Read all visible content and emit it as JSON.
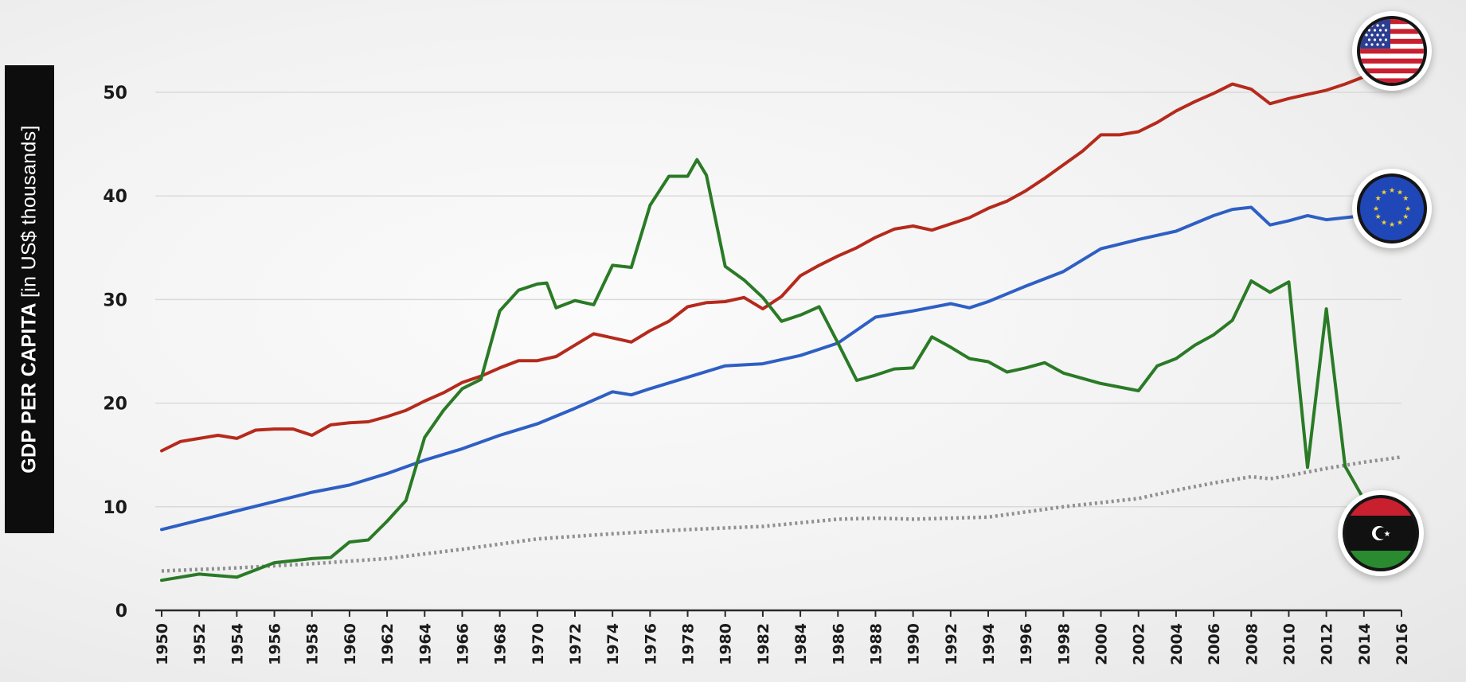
{
  "chart_data": {
    "type": "line",
    "ylabel_bold": "GDP PER CAPITA",
    "ylabel_unit": "[in US$ thousands]",
    "ylim": [
      0,
      50
    ],
    "xlim": [
      1950,
      2016
    ],
    "yticks": [
      0,
      10,
      20,
      30,
      40,
      50
    ],
    "xticks": [
      1950,
      1952,
      1954,
      1956,
      1958,
      1960,
      1962,
      1964,
      1966,
      1968,
      1970,
      1972,
      1974,
      1976,
      1978,
      1980,
      1982,
      1984,
      1986,
      1988,
      1990,
      1992,
      1994,
      1996,
      1998,
      2000,
      2002,
      2004,
      2006,
      2008,
      2010,
      2012,
      2014,
      2016
    ],
    "grid": true,
    "legend": "flag icons at line ends (right)",
    "series": [
      {
        "key": "usa",
        "flag": "usa-flag-icon",
        "color": "#b52a1c",
        "style": "solid",
        "x": [
          1950,
          1951,
          1952,
          1953,
          1954,
          1955,
          1956,
          1957,
          1958,
          1959,
          1960,
          1961,
          1962,
          1963,
          1964,
          1965,
          1966,
          1967,
          1968,
          1969,
          1970,
          1971,
          1972,
          1973,
          1974,
          1975,
          1976,
          1977,
          1978,
          1979,
          1980,
          1981,
          1982,
          1983,
          1984,
          1985,
          1986,
          1987,
          1988,
          1989,
          1990,
          1991,
          1992,
          1993,
          1994,
          1995,
          1996,
          1997,
          1998,
          1999,
          2000,
          2001,
          2002,
          2003,
          2004,
          2005,
          2006,
          2007,
          2008,
          2009,
          2010,
          2011,
          2012,
          2013,
          2014
        ],
        "y": [
          15.4,
          16.3,
          16.6,
          16.9,
          16.6,
          17.4,
          17.5,
          17.5,
          16.9,
          17.9,
          18.1,
          18.2,
          18.7,
          19.3,
          20.2,
          21.0,
          22.0,
          22.6,
          23.4,
          24.1,
          24.1,
          24.5,
          25.6,
          26.7,
          26.3,
          25.9,
          27.0,
          27.9,
          29.3,
          29.7,
          29.8,
          30.2,
          29.1,
          30.3,
          32.3,
          33.3,
          34.2,
          35.0,
          36.0,
          36.8,
          37.1,
          36.7,
          37.3,
          37.9,
          38.8,
          39.5,
          40.5,
          41.7,
          43.0,
          44.3,
          45.9,
          45.9,
          46.2,
          47.1,
          48.2,
          49.1,
          49.9,
          50.8,
          50.3,
          48.9,
          49.4,
          49.8,
          50.2,
          50.8,
          51.5
        ]
      },
      {
        "key": "eu",
        "flag": "eu-flag-icon",
        "color": "#2e5fc4",
        "style": "solid",
        "x": [
          1950,
          1952,
          1954,
          1956,
          1958,
          1960,
          1962,
          1964,
          1966,
          1968,
          1970,
          1972,
          1974,
          1975,
          1976,
          1978,
          1980,
          1982,
          1984,
          1986,
          1988,
          1990,
          1992,
          1993,
          1994,
          1996,
          1998,
          2000,
          2002,
          2004,
          2006,
          2007,
          2008,
          2009,
          2010,
          2011,
          2012,
          2013,
          2014,
          2015
        ],
        "y": [
          7.8,
          8.7,
          9.6,
          10.5,
          11.4,
          12.1,
          13.2,
          14.5,
          15.6,
          16.9,
          18.0,
          19.5,
          21.1,
          20.8,
          21.4,
          22.5,
          23.6,
          23.8,
          24.6,
          25.8,
          28.3,
          28.9,
          29.6,
          29.2,
          29.8,
          31.3,
          32.7,
          34.9,
          35.8,
          36.6,
          38.1,
          38.7,
          38.9,
          37.2,
          37.6,
          38.1,
          37.7,
          37.9,
          38.1,
          38.1
        ]
      },
      {
        "key": "libya",
        "flag": "libya-flag-icon",
        "color": "#2a7a26",
        "style": "solid",
        "x": [
          1950,
          1952,
          1954,
          1956,
          1958,
          1959,
          1960,
          1961,
          1962,
          1963,
          1964,
          1965,
          1966,
          1967,
          1968,
          1969,
          1970,
          1970.5,
          1971,
          1972,
          1973,
          1974,
          1975,
          1976,
          1977,
          1978,
          1978.5,
          1979,
          1980,
          1981,
          1982,
          1983,
          1984,
          1985,
          1986,
          1987,
          1988,
          1989,
          1990,
          1991,
          1992,
          1993,
          1994,
          1995,
          1996,
          1997,
          1998,
          2000,
          2002,
          2003,
          2004,
          2005,
          2006,
          2007,
          2008,
          2009,
          2010,
          2011,
          2012,
          2013,
          2014
        ],
        "y": [
          2.9,
          3.5,
          3.2,
          4.6,
          5.0,
          5.1,
          6.6,
          6.8,
          8.6,
          10.6,
          16.7,
          19.3,
          21.4,
          22.3,
          28.9,
          30.9,
          31.5,
          31.6,
          29.2,
          29.9,
          29.5,
          33.3,
          33.1,
          39.1,
          41.9,
          41.9,
          43.5,
          42.0,
          33.2,
          31.9,
          30.2,
          27.9,
          28.5,
          29.3,
          25.8,
          22.2,
          22.7,
          23.3,
          23.4,
          26.4,
          25.4,
          24.3,
          24.0,
          23.0,
          23.4,
          23.9,
          22.9,
          21.9,
          21.2,
          23.6,
          24.3,
          25.6,
          26.6,
          28.0,
          31.8,
          30.7,
          31.7,
          13.8,
          29.1,
          13.9,
          10.7
        ]
      },
      {
        "key": "world",
        "color": "#909090",
        "style": "dotted",
        "x": [
          1950,
          1954,
          1958,
          1962,
          1966,
          1970,
          1974,
          1978,
          1982,
          1986,
          1988,
          1990,
          1992,
          1994,
          1996,
          1998,
          2000,
          2002,
          2004,
          2006,
          2008,
          2009,
          2010,
          2012,
          2014,
          2016
        ],
        "y": [
          3.8,
          4.1,
          4.5,
          5.0,
          5.9,
          6.9,
          7.4,
          7.8,
          8.1,
          8.8,
          8.9,
          8.8,
          8.9,
          9.0,
          9.5,
          10.0,
          10.4,
          10.8,
          11.6,
          12.3,
          12.9,
          12.7,
          13.0,
          13.7,
          14.3,
          14.8
        ]
      }
    ]
  }
}
